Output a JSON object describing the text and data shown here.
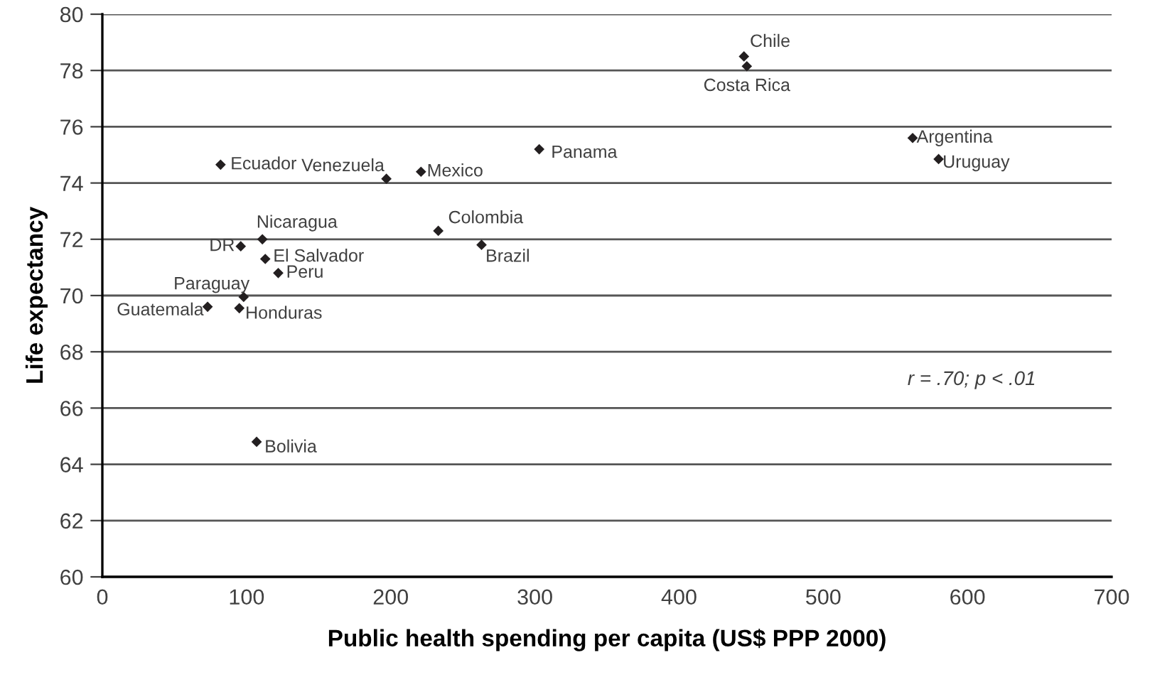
{
  "chart_data": {
    "type": "scatter",
    "xlabel": "Public health spending per capita (US$ PPP 2000)",
    "ylabel": "Life expectancy",
    "xlim": [
      0,
      700
    ],
    "xticks": [
      0,
      100,
      200,
      300,
      400,
      500,
      600,
      700
    ],
    "ylim": [
      60,
      80
    ],
    "yticks": [
      60,
      62,
      64,
      66,
      68,
      70,
      72,
      74,
      76,
      78,
      80
    ],
    "grid": "y",
    "marker": "diamond",
    "legend": false,
    "annotations": [
      "r = .70; p < .01"
    ],
    "series": [
      {
        "color": "#231f20",
        "x": [
          445,
          447,
          562,
          580,
          303,
          221,
          233,
          263,
          82,
          197,
          111,
          96,
          113,
          122,
          98,
          73,
          95,
          107
        ],
        "values": [
          78.5,
          78.15,
          75.6,
          74.85,
          75.2,
          74.4,
          72.3,
          71.8,
          74.65,
          74.15,
          72.0,
          71.75,
          71.3,
          70.8,
          69.95,
          69.6,
          69.55,
          64.8
        ],
        "value_labels": [
          "Chile",
          "Costa Rica",
          "Argentina",
          "Uruguay",
          "Panama",
          "Mexico",
          "Colombia",
          "Brazil",
          "Ecuador",
          "Venezuela",
          "Nicaragua",
          "DR",
          "El Salvador",
          "Peru",
          "Paraguay",
          "Guatemala",
          "Honduras",
          "Bolivia"
        ]
      }
    ]
  }
}
